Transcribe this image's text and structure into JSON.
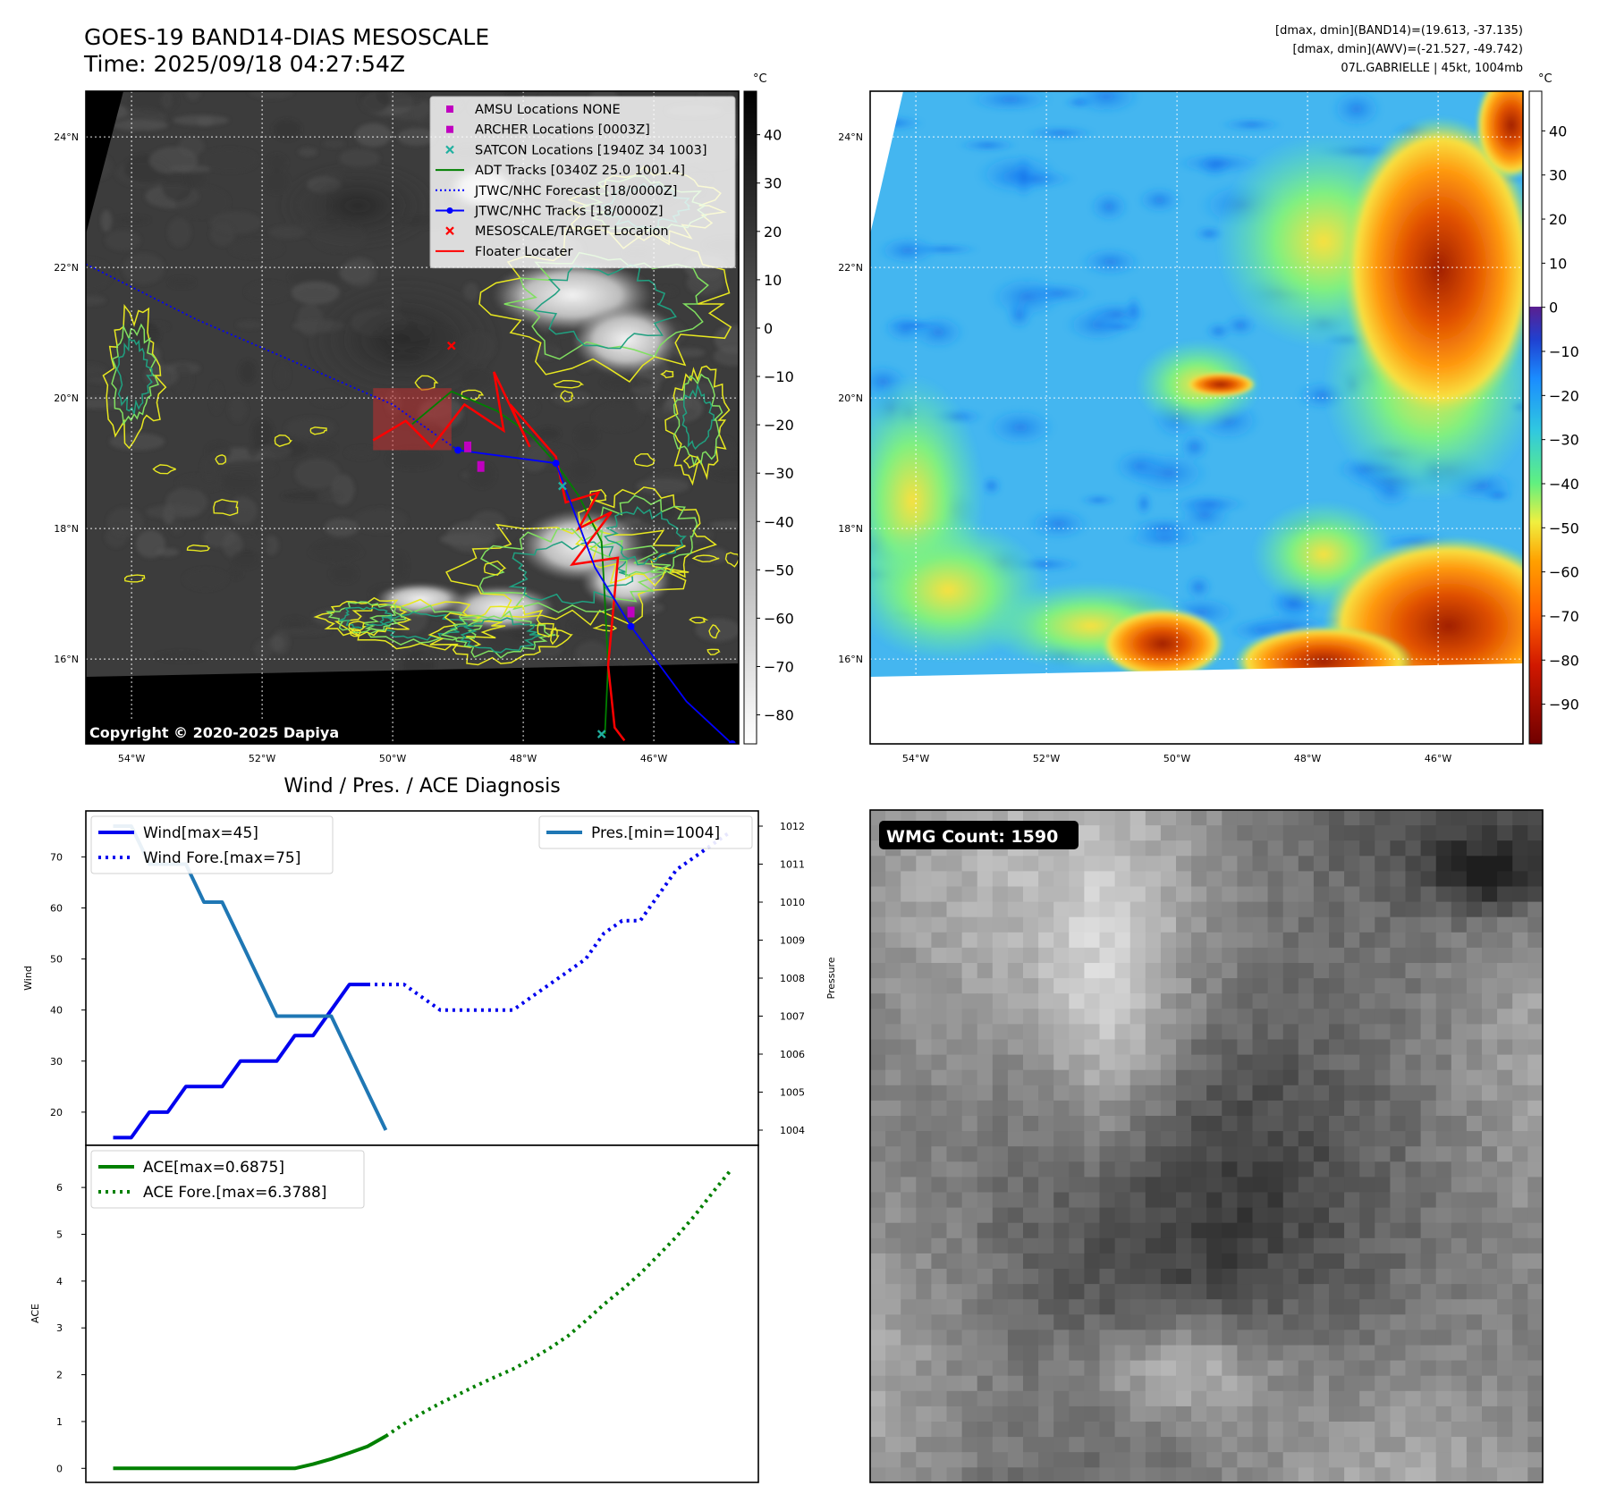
{
  "titles": {
    "main_title": "GOES-19 BAND14-DIAS MESOSCALE",
    "time": "Time: 2025/09/18 04:27:54Z",
    "info_line1": "[dmax, dmin](BAND14)=(19.613, -37.135)",
    "info_line2": "[dmax, dmin](AWV)=(-21.527, -49.742)",
    "info_line3": "07L.GABRIELLE | 45kt, 1004mb",
    "diagnosis_title": "Wind / Pres. / ACE Diagnosis",
    "copyright": "Copyright © 2020-2025 Dapiya",
    "wmg_badge": "WMG Count: 1590"
  },
  "map_axes": {
    "lat_labels": [
      "24°N",
      "22°N",
      "20°N",
      "18°N",
      "16°N"
    ],
    "lon_labels": [
      "54°W",
      "52°W",
      "50°W",
      "48°W",
      "46°W"
    ],
    "lat_values": [
      24,
      22,
      20,
      18,
      16
    ],
    "lon_values": [
      -54,
      -52,
      -50,
      -48,
      -46
    ],
    "extent": {
      "lon": [
        -54.7,
        -44.7
      ],
      "lat": [
        14.7,
        24.7
      ]
    }
  },
  "colorbars": {
    "gray": {
      "unit": "°C",
      "ticks": [
        "40",
        "30",
        "20",
        "10",
        "0",
        "−10",
        "−20",
        "−30",
        "−40",
        "−50",
        "−60",
        "−70",
        "−80"
      ],
      "range": [
        49,
        -86
      ]
    },
    "color": {
      "unit": "°C",
      "ticks": [
        "40",
        "30",
        "20",
        "10",
        "0",
        "−10",
        "−20",
        "−30",
        "−40",
        "−50",
        "−60",
        "−70",
        "−80",
        "−90"
      ],
      "range": [
        49,
        -99
      ]
    }
  },
  "map_legend": [
    {
      "label": "AMSU Locations NONE",
      "marker": "square",
      "color": "#c000c0"
    },
    {
      "label": "ARCHER Locations [0003Z]",
      "marker": "square",
      "color": "#c000c0"
    },
    {
      "label": "SATCON Locations [1940Z 34 1003]",
      "marker": "x",
      "color": "#20b0a0"
    },
    {
      "label": "ADT Tracks [0340Z 25.0 1001.4]",
      "marker": "line",
      "color": "#008000"
    },
    {
      "label": "JTWC/NHC Forecast [18/0000Z]",
      "marker": "dotted",
      "color": "#0000ff"
    },
    {
      "label": "JTWC/NHC Tracks [18/0000Z]",
      "marker": "line-dot",
      "color": "#0000ff"
    },
    {
      "label": "MESOSCALE/TARGET Location",
      "marker": "x",
      "color": "#ff0000"
    },
    {
      "label": "Floater Locater",
      "marker": "line",
      "color": "#ff0000"
    }
  ],
  "chart_data": [
    {
      "type": "line",
      "name": "Wind / Pres.",
      "x": [
        0,
        1,
        2,
        3,
        4,
        5,
        6,
        7,
        8,
        9,
        10,
        11,
        12,
        13,
        14,
        15,
        16,
        17,
        18,
        19,
        20,
        21,
        22,
        23,
        24,
        25,
        26,
        27,
        28,
        29,
        30,
        31,
        32,
        33,
        34
      ],
      "series": [
        {
          "name": "Wind[max=45]",
          "axis": "left",
          "style": "solid",
          "color": "#0000ee",
          "values": [
            15,
            15,
            20,
            20,
            25,
            25,
            25,
            30,
            30,
            30,
            35,
            35,
            40,
            45,
            45,
            null,
            null,
            null,
            null,
            null,
            null,
            null,
            null,
            null,
            null,
            null,
            null,
            null,
            null,
            null,
            null,
            null,
            null,
            null,
            null
          ]
        },
        {
          "name": "Wind Fore.[max=75]",
          "axis": "left",
          "style": "dotted",
          "color": "#0000ee",
          "values": [
            null,
            null,
            null,
            null,
            null,
            null,
            null,
            null,
            null,
            null,
            null,
            null,
            null,
            null,
            45,
            45,
            45,
            42.5,
            40,
            40,
            40,
            40,
            40,
            42.5,
            45,
            47.5,
            50,
            55,
            57.5,
            57.5,
            62.5,
            67.5,
            70,
            72.5,
            75
          ]
        },
        {
          "name": "Pres.[min=1004]",
          "axis": "right",
          "style": "solid",
          "color": "#1f77b4",
          "values": [
            1012,
            1012,
            1011,
            1011,
            1011,
            1010,
            1010,
            1009,
            1008,
            1007,
            1007,
            1007,
            1007,
            1006,
            1005,
            1004,
            null,
            null,
            null,
            null,
            null,
            null,
            null,
            null,
            null,
            null,
            null,
            null,
            null,
            null,
            null,
            null,
            null,
            null,
            null
          ]
        }
      ],
      "xlim": [
        -1.5,
        35.5
      ],
      "ylabel": "Wind",
      "ylim": [
        13.5,
        79
      ],
      "y_ticks": [
        20,
        30,
        40,
        50,
        60,
        70
      ],
      "y2label": "Pressure",
      "y2lim": [
        1003.6,
        1012.4
      ],
      "y2_ticks": [
        1004,
        1005,
        1006,
        1007,
        1008,
        1009,
        1010,
        1011,
        1012
      ]
    },
    {
      "type": "line",
      "name": "ACE",
      "x": [
        0,
        1,
        2,
        3,
        4,
        5,
        6,
        7,
        8,
        9,
        10,
        11,
        12,
        13,
        14,
        15,
        16,
        17,
        18,
        19,
        20,
        21,
        22,
        23,
        24,
        25,
        26,
        27,
        28,
        29,
        30,
        31,
        32,
        33,
        34
      ],
      "series": [
        {
          "name": "ACE[max=0.6875]",
          "style": "solid",
          "color": "#008000",
          "values": [
            0,
            0,
            0,
            0,
            0,
            0,
            0,
            0,
            0,
            0,
            0,
            0.09,
            0.2,
            0.33,
            0.47,
            0.6875,
            null,
            null,
            null,
            null,
            null,
            null,
            null,
            null,
            null,
            null,
            null,
            null,
            null,
            null,
            null,
            null,
            null,
            null,
            null
          ]
        },
        {
          "name": "ACE Fore.[max=6.3788]",
          "style": "dotted",
          "color": "#008000",
          "values": [
            null,
            null,
            null,
            null,
            null,
            null,
            null,
            null,
            null,
            null,
            null,
            null,
            null,
            null,
            null,
            0.6875,
            0.95,
            1.18,
            1.39,
            1.58,
            1.77,
            1.95,
            2.12,
            2.33,
            2.56,
            2.82,
            3.15,
            3.5,
            3.82,
            4.16,
            4.55,
            4.95,
            5.4,
            5.9,
            6.3788
          ]
        }
      ],
      "xlim": [
        -1.5,
        35.5
      ],
      "ylabel": "ACE",
      "ylim": [
        -0.3,
        6.9
      ],
      "y_ticks": [
        0,
        1,
        2,
        3,
        4,
        5,
        6
      ]
    }
  ],
  "track_data": {
    "jtwc_forecast": [
      [
        -54.7,
        22.05
      ],
      [
        -53,
        21.2
      ],
      [
        -51.5,
        20.55
      ],
      [
        -50,
        19.9
      ],
      [
        -49,
        19.2
      ]
    ],
    "jtwc_track": [
      [
        -49,
        19.2
      ],
      [
        -47.5,
        19.0
      ],
      [
        -46.9,
        17.4
      ],
      [
        -46.35,
        16.5
      ],
      [
        -45.5,
        15.35
      ],
      [
        -44.8,
        14.7
      ]
    ],
    "jtwc_points": [
      [
        -49,
        19.2
      ],
      [
        -47.5,
        19.0
      ],
      [
        -46.35,
        16.5
      ],
      [
        -44.8,
        14.7
      ]
    ],
    "adt_track": [
      [
        -49.7,
        19.6
      ],
      [
        -49.1,
        20.1
      ],
      [
        -48.4,
        19.8
      ],
      [
        -47.9,
        19.45
      ],
      [
        -47.5,
        19.0
      ],
      [
        -47.15,
        18.5
      ],
      [
        -46.8,
        17.8
      ],
      [
        -46.75,
        16.9
      ],
      [
        -46.7,
        15.9
      ],
      [
        -46.75,
        14.85
      ]
    ],
    "floater_track": [
      [
        -50.3,
        19.35
      ],
      [
        -49.8,
        19.65
      ],
      [
        -49.4,
        19.25
      ],
      [
        -48.9,
        19.9
      ],
      [
        -48.3,
        19.5
      ],
      [
        -48.45,
        20.4
      ],
      [
        -47.9,
        19.25
      ],
      [
        -48.2,
        19.9
      ],
      [
        -47.5,
        19.1
      ],
      [
        -47.35,
        18.4
      ],
      [
        -46.85,
        18.55
      ],
      [
        -47.15,
        18.0
      ],
      [
        -46.65,
        18.25
      ],
      [
        -47.25,
        17.45
      ],
      [
        -46.55,
        17.55
      ],
      [
        -46.7,
        15.9
      ],
      [
        -46.6,
        14.95
      ],
      [
        -46.45,
        14.75
      ]
    ],
    "archer_points": [
      [
        -48.85,
        19.25
      ],
      [
        -48.65,
        18.95
      ],
      [
        -46.35,
        16.72
      ]
    ],
    "satcon_points": [
      [
        -47.4,
        18.65
      ],
      [
        -46.8,
        14.85
      ]
    ],
    "target_point": [
      -49.1,
      20.8
    ],
    "floater_box": {
      "lon": [
        -50.3,
        -49.1
      ],
      "lat": [
        19.2,
        20.15
      ]
    }
  }
}
